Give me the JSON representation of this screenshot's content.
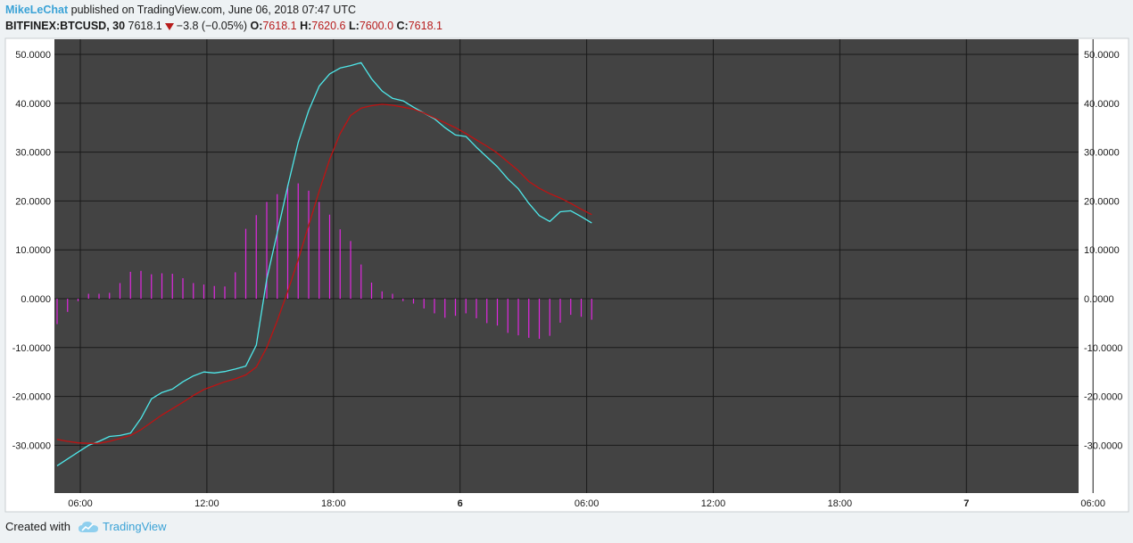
{
  "header": {
    "author": "MikeLeChat",
    "published_text": " published on TradingView.com, June 06, 2018 07:47 UTC",
    "symbol": "BITFINEX:BTCUSD, 30",
    "last_price": "7618.1",
    "change": "−3.8 (−0.05%)",
    "open_label": "O:",
    "open_value": "7618.1",
    "high_label": "H:",
    "high_value": "7620.6",
    "low_label": "L:",
    "low_value": "7600.0",
    "close_label": "C:",
    "close_value": "7618.1"
  },
  "footer": {
    "created_with": "Created with",
    "brand": "TradingView"
  },
  "colors": {
    "page_bg": "#eef2f4",
    "plot_bg": "#434343",
    "grid": "#1a1a1a",
    "macd_line": "#4ee8ea",
    "signal_line": "#c01212",
    "histogram": "#e028e0"
  },
  "chart_data": {
    "type": "line",
    "title": "",
    "xlabel": "",
    "ylabel": "",
    "ylim": [
      -35,
      51
    ],
    "y_ticks": [
      "50.0000",
      "40.0000",
      "30.0000",
      "20.0000",
      "10.0000",
      "0.0000",
      "-10.0000",
      "-20.0000",
      "-30.0000"
    ],
    "x_ticks": [
      "06:00",
      "12:00",
      "18:00",
      "6",
      "06:00",
      "12:00",
      "18:00",
      "7",
      "06:00"
    ],
    "grid": true,
    "bar_interval": "30 minutes",
    "series": [
      {
        "name": "",
        "kind": "line",
        "color": "#4ee8ea",
        "values": [
          -34.2,
          -32.8,
          -31.4,
          -30.0,
          -29.2,
          -28.2,
          -28.0,
          -27.5,
          -24.5,
          -20.5,
          -19.2,
          -18.5,
          -17.0,
          -15.8,
          -15.0,
          -15.2,
          -14.9,
          -14.4,
          -13.8,
          -9.5,
          4.0,
          13.5,
          23.0,
          32.0,
          38.5,
          43.5,
          46.0,
          47.2,
          47.7,
          48.3,
          45.0,
          42.5,
          41.0,
          40.5,
          39.2,
          38.0,
          36.8,
          35.0,
          33.5,
          33.2,
          31.0,
          29.0,
          27.0,
          24.5,
          22.5,
          19.5,
          17.0,
          15.8,
          17.8,
          18.0,
          16.8,
          15.5
        ]
      },
      {
        "name": "",
        "kind": "line",
        "color": "#c01212",
        "values": [
          -28.8,
          -29.2,
          -29.5,
          -29.6,
          -29.6,
          -29.2,
          -28.6,
          -28.0,
          -26.8,
          -25.3,
          -23.8,
          -22.5,
          -21.2,
          -19.8,
          -18.6,
          -17.8,
          -17.0,
          -16.4,
          -15.6,
          -14.0,
          -10.0,
          -4.5,
          1.5,
          8.0,
          15.0,
          22.0,
          28.5,
          33.8,
          37.5,
          39.0,
          39.5,
          39.8,
          39.6,
          39.2,
          38.8,
          38.0,
          37.0,
          36.0,
          35.0,
          33.8,
          32.5,
          31.2,
          29.8,
          28.0,
          26.2,
          24.0,
          22.6,
          21.5,
          20.6,
          19.5,
          18.3,
          17.2
        ]
      },
      {
        "name": "",
        "kind": "histogram",
        "color": "#e028e0",
        "values": [
          -5.2,
          -2.7,
          -0.5,
          1.0,
          1.0,
          1.2,
          3.2,
          5.5,
          5.7,
          5.0,
          5.2,
          5.1,
          4.2,
          3.2,
          2.9,
          2.6,
          2.5,
          5.4,
          14.3,
          17.1,
          19.8,
          21.4,
          23.3,
          23.6,
          22.1,
          19.8,
          17.2,
          14.2,
          11.8,
          7.0,
          3.3,
          1.5,
          1.0,
          -0.5,
          -1.0,
          -2.0,
          -3.0,
          -3.9,
          -3.5,
          -3.0,
          -4.0,
          -5.0,
          -5.5,
          -7.0,
          -7.5,
          -8.0,
          -8.2,
          -7.6,
          -4.9,
          -3.3,
          -3.7,
          -4.3
        ]
      }
    ]
  }
}
